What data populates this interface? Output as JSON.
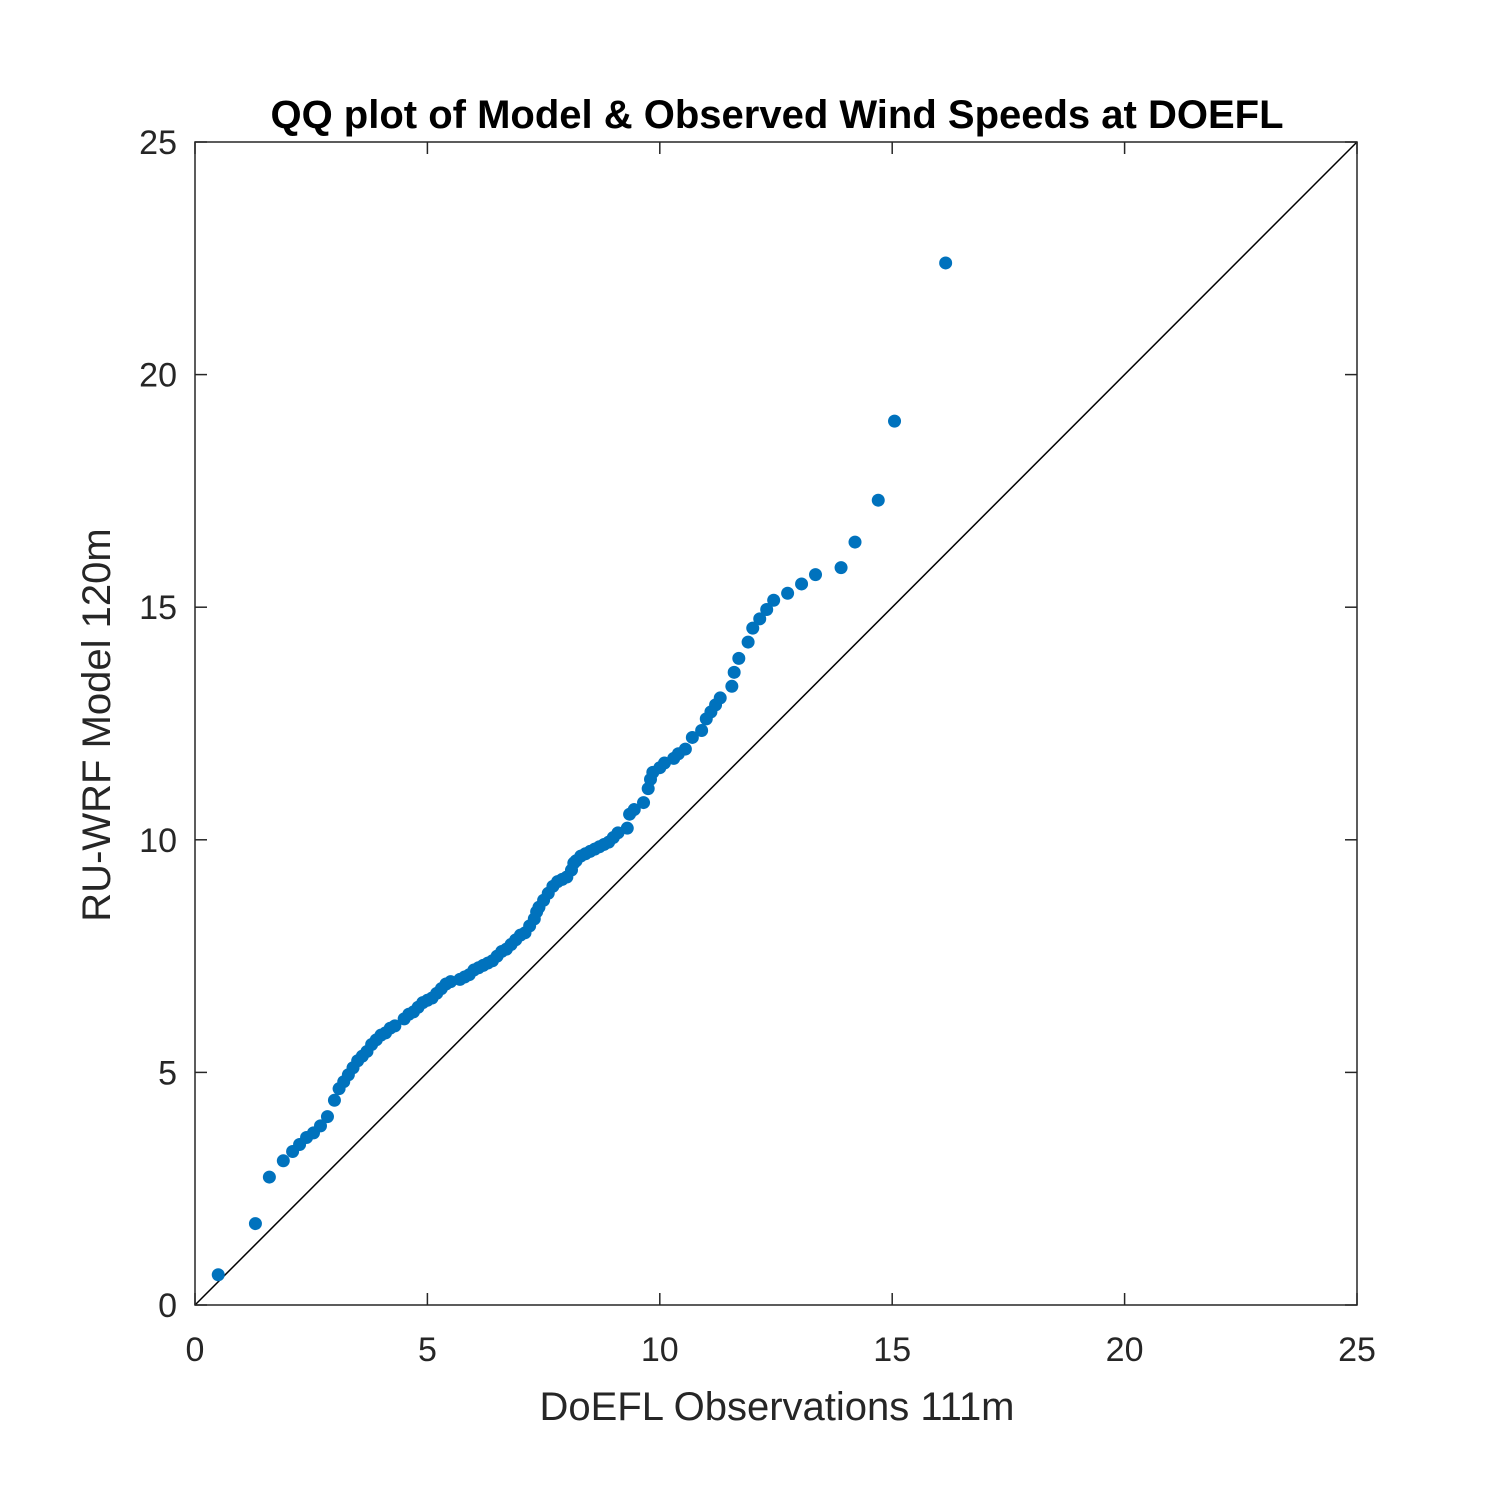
{
  "chart_data": {
    "type": "scatter",
    "title": "QQ plot of Model & Observed Wind Speeds at DOEFL",
    "xlabel": "DoEFL Observations 111m",
    "ylabel": "RU-WRF Model 120m",
    "xlim": [
      0,
      25
    ],
    "ylim": [
      0,
      25
    ],
    "xticks": [
      "0",
      "5",
      "10",
      "15",
      "20",
      "25"
    ],
    "yticks": [
      "0",
      "5",
      "10",
      "15",
      "20",
      "25"
    ],
    "grid": false,
    "box": true,
    "reference_line": {
      "from": [
        0,
        0
      ],
      "to": [
        25,
        25
      ],
      "color": "#000000"
    },
    "marker_color": "#0072BD",
    "points": [
      [
        0.5,
        0.65
      ],
      [
        1.3,
        1.75
      ],
      [
        1.6,
        2.75
      ],
      [
        1.9,
        3.1
      ],
      [
        2.1,
        3.3
      ],
      [
        2.25,
        3.45
      ],
      [
        2.4,
        3.6
      ],
      [
        2.55,
        3.7
      ],
      [
        2.7,
        3.85
      ],
      [
        2.85,
        4.05
      ],
      [
        3.0,
        4.4
      ],
      [
        3.1,
        4.65
      ],
      [
        3.2,
        4.8
      ],
      [
        3.3,
        4.95
      ],
      [
        3.4,
        5.1
      ],
      [
        3.5,
        5.25
      ],
      [
        3.6,
        5.35
      ],
      [
        3.7,
        5.45
      ],
      [
        3.8,
        5.6
      ],
      [
        3.9,
        5.7
      ],
      [
        4.0,
        5.8
      ],
      [
        4.1,
        5.85
      ],
      [
        4.2,
        5.95
      ],
      [
        4.3,
        6.0
      ],
      [
        4.5,
        6.15
      ],
      [
        4.6,
        6.25
      ],
      [
        4.7,
        6.3
      ],
      [
        4.8,
        6.4
      ],
      [
        4.9,
        6.5
      ],
      [
        5.0,
        6.55
      ],
      [
        5.1,
        6.6
      ],
      [
        5.2,
        6.7
      ],
      [
        5.3,
        6.8
      ],
      [
        5.4,
        6.9
      ],
      [
        5.5,
        6.95
      ],
      [
        5.7,
        7.0
      ],
      [
        5.8,
        7.05
      ],
      [
        5.9,
        7.1
      ],
      [
        6.0,
        7.2
      ],
      [
        6.1,
        7.25
      ],
      [
        6.2,
        7.3
      ],
      [
        6.3,
        7.35
      ],
      [
        6.4,
        7.4
      ],
      [
        6.5,
        7.5
      ],
      [
        6.6,
        7.6
      ],
      [
        6.7,
        7.65
      ],
      [
        6.8,
        7.75
      ],
      [
        6.9,
        7.85
      ],
      [
        7.0,
        7.95
      ],
      [
        7.1,
        8.0
      ],
      [
        7.2,
        8.15
      ],
      [
        7.3,
        8.3
      ],
      [
        7.35,
        8.45
      ],
      [
        7.4,
        8.55
      ],
      [
        7.5,
        8.7
      ],
      [
        7.6,
        8.85
      ],
      [
        7.7,
        9.0
      ],
      [
        7.8,
        9.1
      ],
      [
        7.9,
        9.15
      ],
      [
        8.0,
        9.2
      ],
      [
        8.1,
        9.35
      ],
      [
        8.15,
        9.5
      ],
      [
        8.2,
        9.55
      ],
      [
        8.3,
        9.65
      ],
      [
        8.4,
        9.7
      ],
      [
        8.5,
        9.75
      ],
      [
        8.6,
        9.8
      ],
      [
        8.7,
        9.85
      ],
      [
        8.8,
        9.9
      ],
      [
        8.9,
        9.95
      ],
      [
        9.0,
        10.05
      ],
      [
        9.1,
        10.15
      ],
      [
        9.3,
        10.25
      ],
      [
        9.35,
        10.55
      ],
      [
        9.45,
        10.65
      ],
      [
        9.65,
        10.8
      ],
      [
        9.75,
        11.1
      ],
      [
        9.8,
        11.3
      ],
      [
        9.85,
        11.45
      ],
      [
        10.0,
        11.55
      ],
      [
        10.1,
        11.65
      ],
      [
        10.3,
        11.75
      ],
      [
        10.4,
        11.85
      ],
      [
        10.55,
        11.95
      ],
      [
        10.7,
        12.2
      ],
      [
        10.9,
        12.35
      ],
      [
        11.0,
        12.6
      ],
      [
        11.1,
        12.75
      ],
      [
        11.2,
        12.9
      ],
      [
        11.3,
        13.05
      ],
      [
        11.55,
        13.3
      ],
      [
        11.6,
        13.6
      ],
      [
        11.7,
        13.9
      ],
      [
        11.9,
        14.25
      ],
      [
        12.0,
        14.55
      ],
      [
        12.15,
        14.75
      ],
      [
        12.3,
        14.95
      ],
      [
        12.45,
        15.15
      ],
      [
        12.75,
        15.3
      ],
      [
        13.05,
        15.5
      ],
      [
        13.35,
        15.7
      ],
      [
        13.9,
        15.85
      ],
      [
        14.2,
        16.4
      ],
      [
        14.7,
        17.3
      ],
      [
        15.05,
        19.0
      ],
      [
        16.15,
        22.4
      ]
    ]
  }
}
